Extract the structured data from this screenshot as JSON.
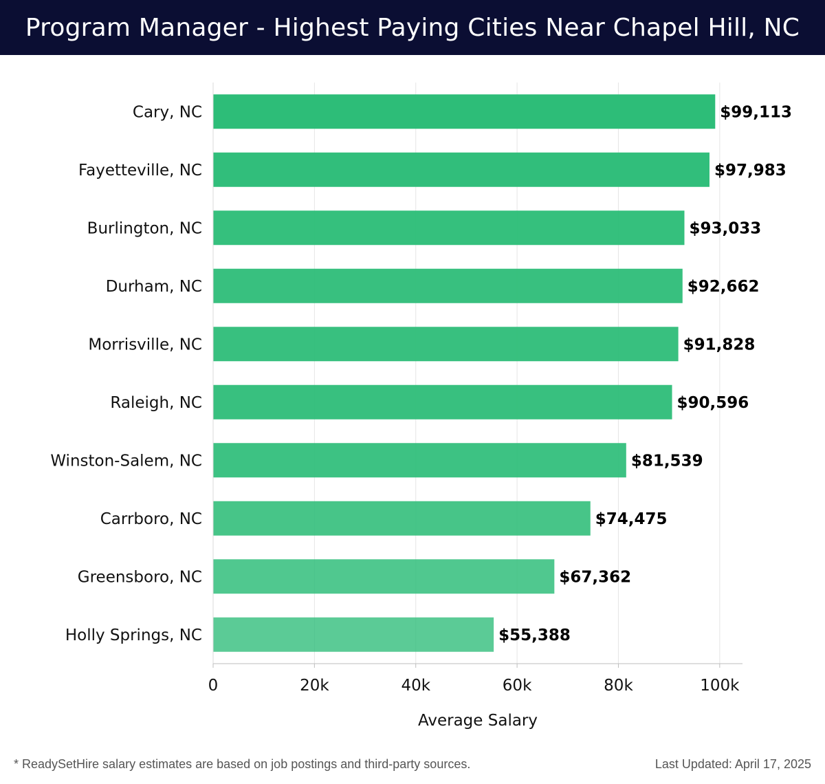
{
  "header": {
    "title": "Program Manager - Highest Paying Cities Near Chapel Hill, NC"
  },
  "chart_data": {
    "type": "bar",
    "orientation": "horizontal",
    "title": "Program Manager - Highest Paying Cities Near Chapel Hill, NC",
    "xlabel": "Average Salary",
    "ylabel": "",
    "categories": [
      "Cary, NC",
      "Fayetteville, NC",
      "Burlington, NC",
      "Durham, NC",
      "Morrisville, NC",
      "Raleigh, NC",
      "Winston-Salem, NC",
      "Carrboro, NC",
      "Greensboro, NC",
      "Holly Springs, NC"
    ],
    "values": [
      99113,
      97983,
      93033,
      92662,
      91828,
      90596,
      81539,
      74475,
      67362,
      55388
    ],
    "value_labels": [
      "$99,113",
      "$97,983",
      "$93,033",
      "$92,662",
      "$91,828",
      "$90,596",
      "$81,539",
      "$74,475",
      "$67,362",
      "$55,388"
    ],
    "xlim": [
      0,
      104500
    ],
    "xticks": [
      0,
      20000,
      40000,
      60000,
      80000,
      100000
    ],
    "xtick_labels": [
      "0",
      "20k",
      "40k",
      "60k",
      "80k",
      "100k"
    ],
    "grid": true,
    "bar_color": "#2dbd78",
    "bar_opacities": [
      1,
      0.98,
      0.96,
      0.95,
      0.95,
      0.95,
      0.92,
      0.88,
      0.83,
      0.78
    ]
  },
  "footer": {
    "note": "* ReadySetHire salary estimates are based on job postings and third-party sources.",
    "updated": "Last Updated: April 17, 2025"
  }
}
